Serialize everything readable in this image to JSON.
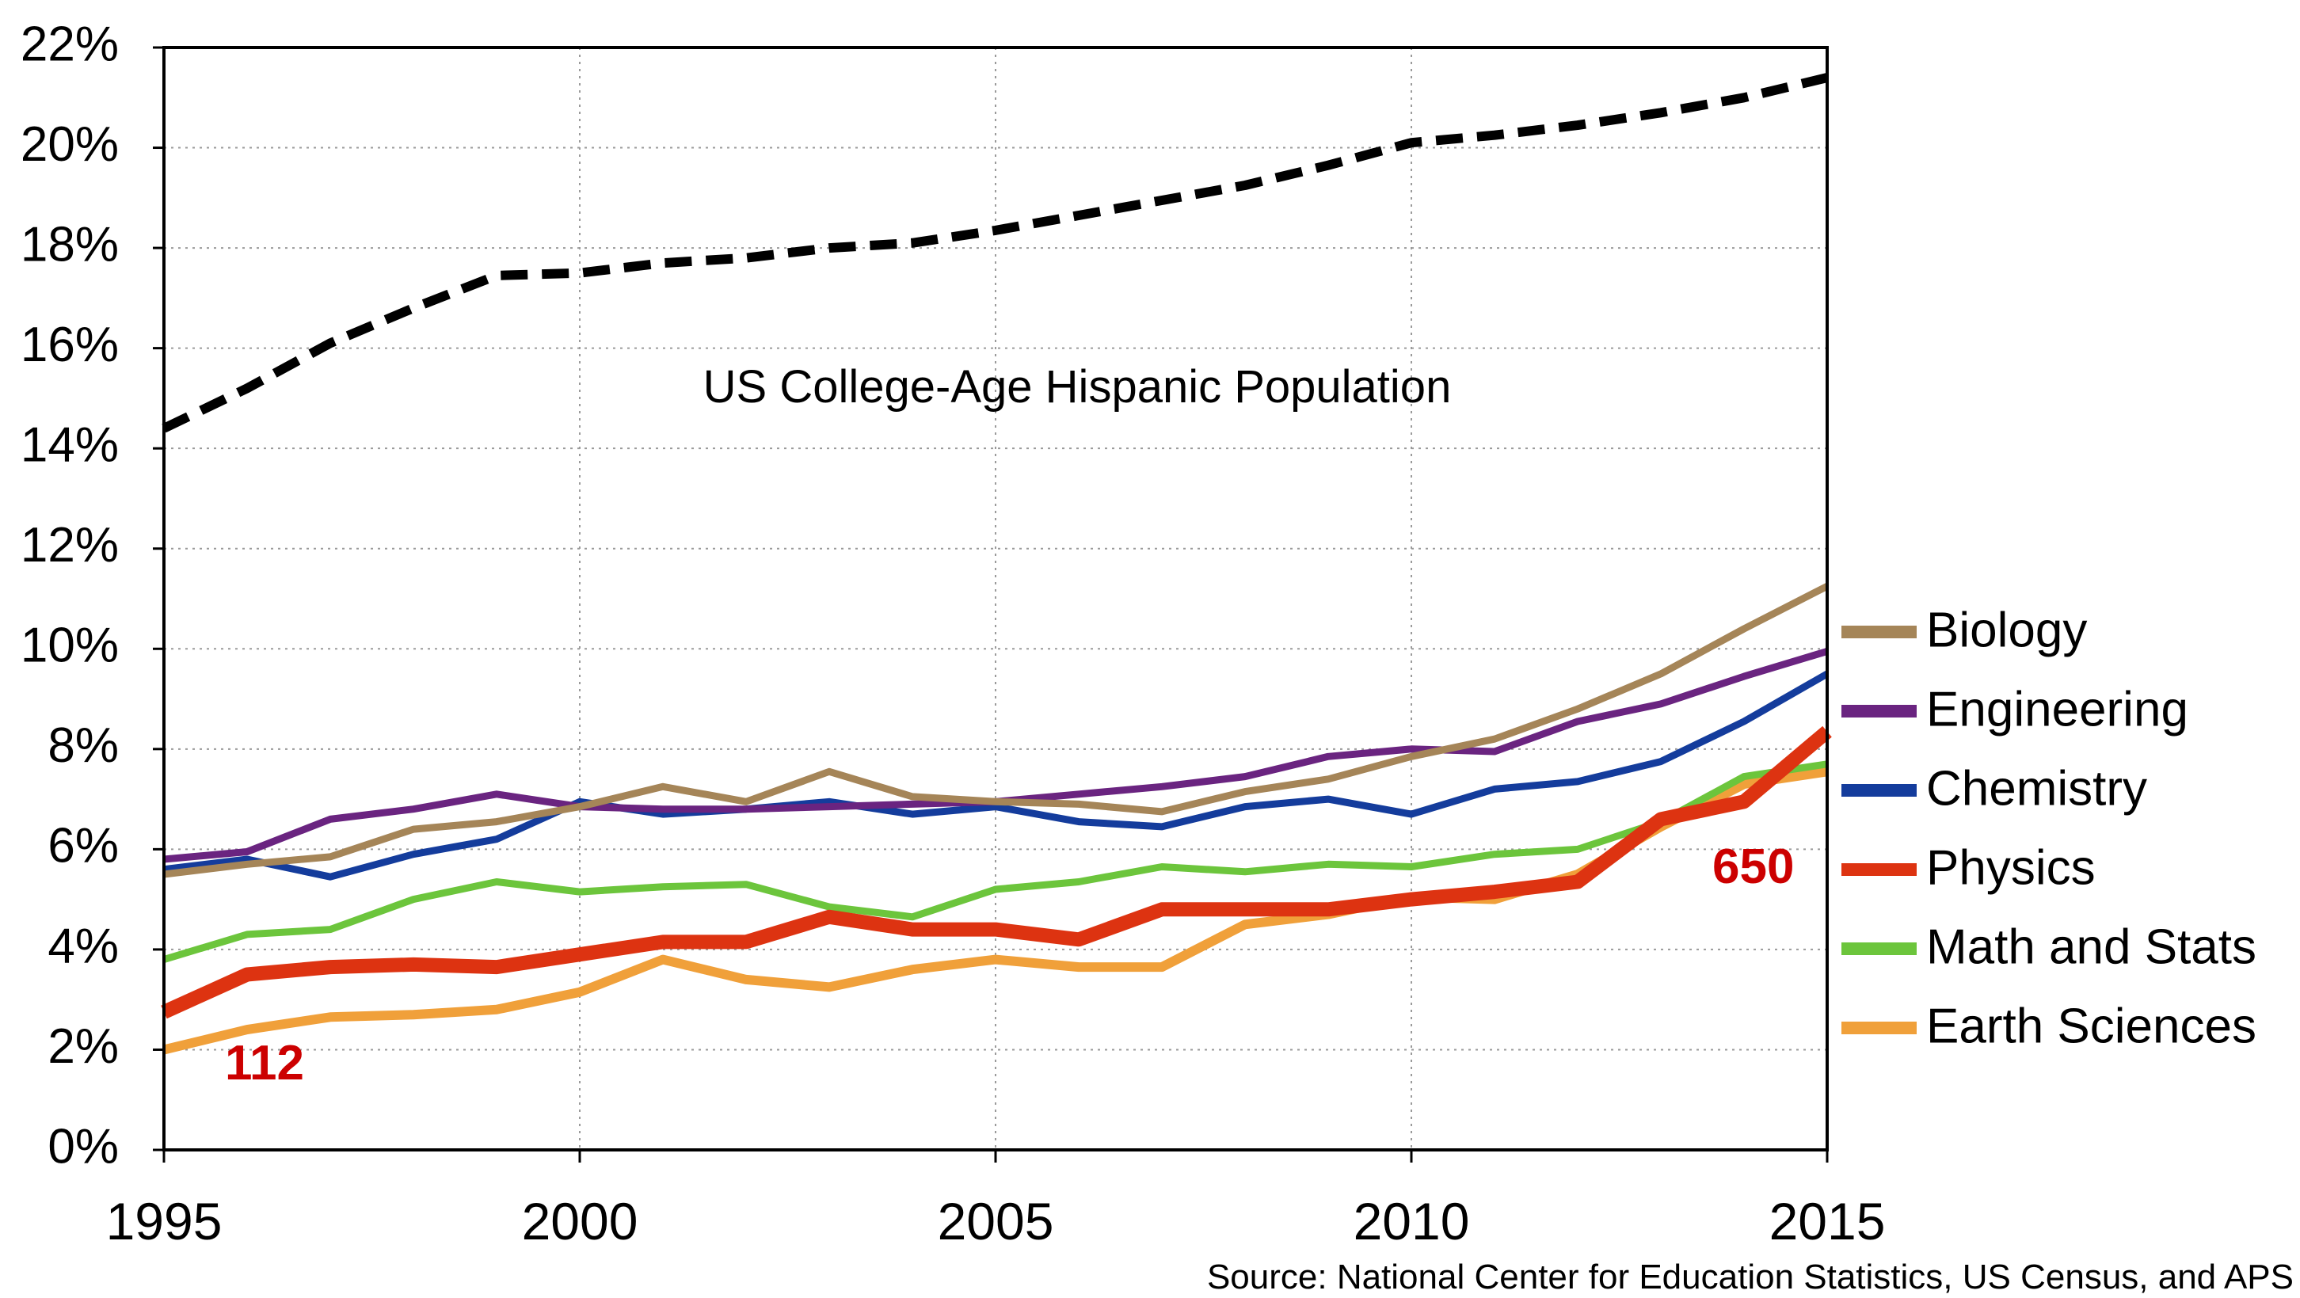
{
  "chart_data": {
    "type": "line",
    "title": "",
    "xlabel": "",
    "ylabel": "",
    "xlim": [
      1995,
      2015
    ],
    "ylim": [
      0,
      22
    ],
    "grid": true,
    "legend_position": "right",
    "x_ticks": [
      "1995",
      "2000",
      "2005",
      "2010",
      "2015"
    ],
    "y_ticks": [
      "0%",
      "2%",
      "4%",
      "6%",
      "8%",
      "10%",
      "12%",
      "14%",
      "16%",
      "18%",
      "20%",
      "22%"
    ],
    "x": [
      1995,
      1996,
      1997,
      1998,
      1999,
      2000,
      2001,
      2002,
      2003,
      2004,
      2005,
      2006,
      2007,
      2008,
      2009,
      2010,
      2011,
      2012,
      2013,
      2014,
      2015
    ],
    "reference_series": {
      "name": "US College-Age Hispanic Population",
      "color": "#000000",
      "style": "dashed",
      "values": [
        14.4,
        15.2,
        16.1,
        16.8,
        17.45,
        17.5,
        17.7,
        17.8,
        18.0,
        18.1,
        18.35,
        18.65,
        18.95,
        19.25,
        19.65,
        20.1,
        20.25,
        20.45,
        20.7,
        21.0,
        21.4
      ]
    },
    "series": [
      {
        "name": "Biology",
        "color": "#a58558",
        "values": [
          5.5,
          5.7,
          5.85,
          6.4,
          6.55,
          6.85,
          7.25,
          6.95,
          7.55,
          7.05,
          6.95,
          6.9,
          6.75,
          7.15,
          7.4,
          7.85,
          8.2,
          8.8,
          9.5,
          10.4,
          11.25
        ]
      },
      {
        "name": "Engineering",
        "color": "#6a2480",
        "values": [
          5.8,
          5.95,
          6.6,
          6.8,
          7.1,
          6.85,
          6.8,
          6.8,
          6.85,
          6.9,
          6.95,
          7.1,
          7.25,
          7.45,
          7.85,
          8.0,
          7.95,
          8.55,
          8.9,
          9.45,
          9.95
        ]
      },
      {
        "name": "Chemistry",
        "color": "#143c9c",
        "values": [
          5.6,
          5.8,
          5.45,
          5.9,
          6.2,
          6.95,
          6.7,
          6.8,
          6.95,
          6.7,
          6.85,
          6.55,
          6.45,
          6.85,
          7.0,
          6.7,
          7.2,
          7.35,
          7.75,
          8.55,
          9.5
        ]
      },
      {
        "name": "Physics",
        "color": "#dd3311",
        "values": [
          2.75,
          3.5,
          3.65,
          3.7,
          3.65,
          3.9,
          4.15,
          4.15,
          4.65,
          4.4,
          4.4,
          4.2,
          4.8,
          4.8,
          4.8,
          5.0,
          5.15,
          5.35,
          6.6,
          6.95,
          8.35
        ]
      },
      {
        "name": "Math and Stats",
        "color": "#6cc53c",
        "values": [
          3.8,
          4.3,
          4.4,
          5.0,
          5.35,
          5.15,
          5.25,
          5.3,
          4.85,
          4.65,
          5.2,
          5.35,
          5.65,
          5.55,
          5.7,
          5.65,
          5.9,
          6.0,
          6.55,
          7.45,
          7.7
        ]
      },
      {
        "name": "Earth Sciences",
        "color": "#f0a03a",
        "values": [
          2.0,
          2.4,
          2.65,
          2.7,
          2.8,
          3.15,
          3.8,
          3.4,
          3.25,
          3.6,
          3.8,
          3.65,
          3.65,
          4.5,
          4.7,
          5.05,
          5.0,
          5.5,
          6.45,
          7.3,
          7.55
        ]
      }
    ],
    "annotations": {
      "population_label": "US College-Age Hispanic Population",
      "start_count": {
        "text": "112",
        "color": "#cc0000",
        "x": 1996,
        "y": 1.5
      },
      "end_count": {
        "text": "650",
        "color": "#cc0000",
        "x": 2014,
        "y": 5.8
      }
    },
    "source": "Source: National Center for Education Statistics, US Census, and APS"
  }
}
